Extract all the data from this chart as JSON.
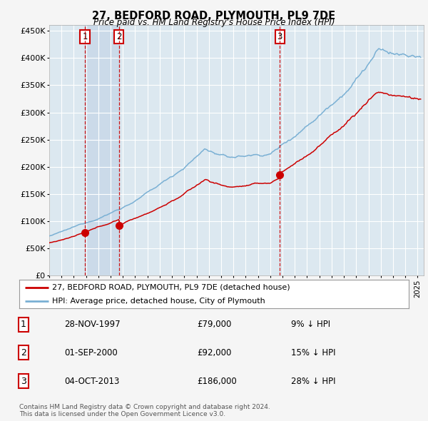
{
  "title": "27, BEDFORD ROAD, PLYMOUTH, PL9 7DE",
  "subtitle": "Price paid vs. HM Land Registry's House Price Index (HPI)",
  "legend_property": "27, BEDFORD ROAD, PLYMOUTH, PL9 7DE (detached house)",
  "legend_hpi": "HPI: Average price, detached house, City of Plymouth",
  "property_color": "#cc0000",
  "hpi_color": "#7ab0d4",
  "background_color": "#f5f5f5",
  "plot_bg_color": "#dce8f0",
  "grid_color": "#ffffff",
  "transactions": [
    {
      "num": 1,
      "date": "28-NOV-1997",
      "price": 79000,
      "pct": "9%",
      "dir": "↓",
      "x_year": 1997.91
    },
    {
      "num": 2,
      "date": "01-SEP-2000",
      "price": 92000,
      "pct": "15%",
      "dir": "↓",
      "x_year": 2000.67
    },
    {
      "num": 3,
      "date": "04-OCT-2013",
      "price": 186000,
      "pct": "28%",
      "dir": "↓",
      "x_year": 2013.78
    }
  ],
  "vline_color": "#cc0000",
  "shade_color": "#c8d8e8",
  "footnote": "Contains HM Land Registry data © Crown copyright and database right 2024.\nThis data is licensed under the Open Government Licence v3.0.",
  "ylim": [
    0,
    460000
  ],
  "xlim_start": 1995.0,
  "xlim_end": 2025.5
}
